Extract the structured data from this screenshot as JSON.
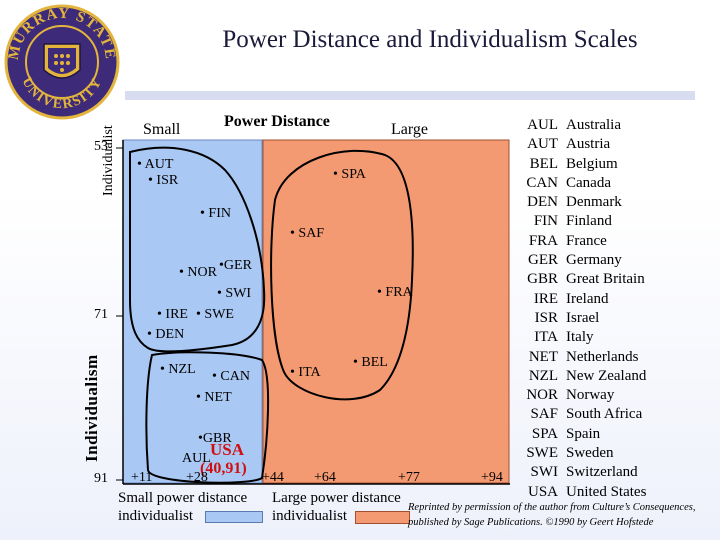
{
  "title": "Power Distance and Individualism Scales",
  "logo": {
    "top_text": "MURRAY STATE",
    "bottom_text": "UNIVERSITY",
    "colors": {
      "purple": "#3d2b7a",
      "gold": "#e4b53c"
    }
  },
  "axis": {
    "x_label": "Power Distance",
    "x_small": "Small",
    "x_large": "Large",
    "y_label_small": "Individualist",
    "y_label_main": "Individualism",
    "y_ticks": [
      "53",
      "71",
      "91"
    ],
    "x_ticks": [
      "+11",
      "+28",
      "+44",
      "+64",
      "+77",
      "+94"
    ]
  },
  "countries": {
    "AUT": "• AUT",
    "ISR": "• ISR",
    "SPA": "• SPA",
    "FIN": "• FIN",
    "SAF": "• SAF",
    "NOR": "• NOR",
    "GER": "•GER",
    "SWI": "• SWI",
    "FRA": "• FRA",
    "IRE": "• IRE",
    "SWE": "• SWE",
    "DEN": "• DEN",
    "NZL": "• NZL",
    "CAN": "• CAN",
    "ITA": "• ITA",
    "BEL": "• BEL",
    "NET": "• NET",
    "GBR": "•GBR",
    "AUL": "AUL"
  },
  "usa": {
    "label": "USA",
    "coord": "(40,91)"
  },
  "legend": {
    "small_line1": "Small power distance",
    "small_line2": "individualist",
    "large_line1": "Large power distance",
    "large_line2": "individualist",
    "small_color": "#a9c8f3",
    "large_color": "#f49a72"
  },
  "reprint": {
    "line1": "Reprinted by permission of the author from Culture’s Consequences,",
    "line2": "published by Sage Publications. ©1990 by Geert Hofstede"
  },
  "key": [
    {
      "code": "AUL",
      "name": "Australia"
    },
    {
      "code": "AUT",
      "name": "Austria"
    },
    {
      "code": "BEL",
      "name": "Belgium"
    },
    {
      "code": "CAN",
      "name": "Canada"
    },
    {
      "code": "DEN",
      "name": "Denmark"
    },
    {
      "code": "FIN",
      "name": "Finland"
    },
    {
      "code": "FRA",
      "name": "France"
    },
    {
      "code": "GER",
      "name": "Germany"
    },
    {
      "code": "GBR",
      "name": "Great Britain"
    },
    {
      "code": "IRE",
      "name": "Ireland"
    },
    {
      "code": "ISR",
      "name": "Israel"
    },
    {
      "code": "ITA",
      "name": "Italy"
    },
    {
      "code": "NET",
      "name": "Netherlands"
    },
    {
      "code": "NZL",
      "name": "New Zealand"
    },
    {
      "code": "NOR",
      "name": "Norway"
    },
    {
      "code": "SAF",
      "name": "South Africa"
    },
    {
      "code": "SPA",
      "name": "Spain"
    },
    {
      "code": "SWE",
      "name": "Sweden"
    },
    {
      "code": "SWI",
      "name": "Switzerland"
    },
    {
      "code": "USA",
      "name": "United States"
    }
  ]
}
